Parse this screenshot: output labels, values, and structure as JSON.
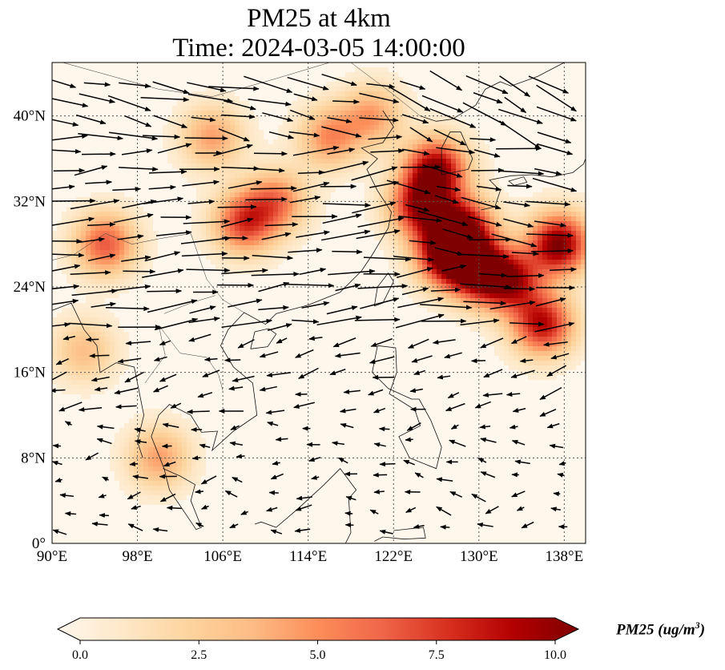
{
  "title": {
    "line1": "PM25 at 4km",
    "line2": "Time: 2024-03-05 14:00:00"
  },
  "map": {
    "extent": {
      "lon_min": 90,
      "lon_max": 140,
      "lat_min": 0,
      "lat_max": 45
    },
    "lon_ticks": [
      {
        "value": 90,
        "label": "90°E"
      },
      {
        "value": 98,
        "label": "98°E"
      },
      {
        "value": 106,
        "label": "106°E"
      },
      {
        "value": 114,
        "label": "114°E"
      },
      {
        "value": 122,
        "label": "122°E"
      },
      {
        "value": 130,
        "label": "130°E"
      },
      {
        "value": 138,
        "label": "138°E"
      }
    ],
    "lat_ticks": [
      {
        "value": 0,
        "label": "0°"
      },
      {
        "value": 8,
        "label": "8°N"
      },
      {
        "value": 16,
        "label": "16°N"
      },
      {
        "value": 24,
        "label": "24°N"
      },
      {
        "value": 32,
        "label": "32°N"
      },
      {
        "value": 40,
        "label": "40°N"
      }
    ],
    "gridlines": true,
    "colormap": "OrRd",
    "pm25_hotspots": [
      {
        "lon": 127,
        "lat": 27,
        "value": 9.5
      },
      {
        "lon": 130,
        "lat": 25.5,
        "value": 9.0
      },
      {
        "lon": 128.5,
        "lat": 29.5,
        "value": 8.5
      },
      {
        "lon": 124.5,
        "lat": 31.5,
        "value": 8.0
      },
      {
        "lon": 126,
        "lat": 35,
        "value": 9.0
      },
      {
        "lon": 137.5,
        "lat": 28,
        "value": 9.5
      },
      {
        "lon": 136,
        "lat": 20.5,
        "value": 8.0
      },
      {
        "lon": 133,
        "lat": 24.5,
        "value": 7.5
      },
      {
        "lon": 108,
        "lat": 30,
        "value": 6.5
      },
      {
        "lon": 111,
        "lat": 32,
        "value": 5.0
      },
      {
        "lon": 95,
        "lat": 28,
        "value": 6.0
      },
      {
        "lon": 116,
        "lat": 38,
        "value": 4.5
      },
      {
        "lon": 105,
        "lat": 38,
        "value": 4.0
      },
      {
        "lon": 120,
        "lat": 40,
        "value": 4.0
      },
      {
        "lon": 100,
        "lat": 8,
        "value": 4.0
      },
      {
        "lon": 93,
        "lat": 18,
        "value": 3.0
      }
    ]
  },
  "colorbar": {
    "min": 0.0,
    "max": 10.0,
    "ticks": [
      "0.0",
      "2.5",
      "5.0",
      "7.5",
      "10.0"
    ],
    "label_prefix": "PM25 (ug/m",
    "label_exp": "3",
    "label_suffix": ")",
    "colors": [
      "#fff7ec",
      "#fee8c8",
      "#fdd49e",
      "#fdbb84",
      "#fc8d59",
      "#ef6548",
      "#d7301f",
      "#b30000",
      "#7f0000"
    ]
  }
}
